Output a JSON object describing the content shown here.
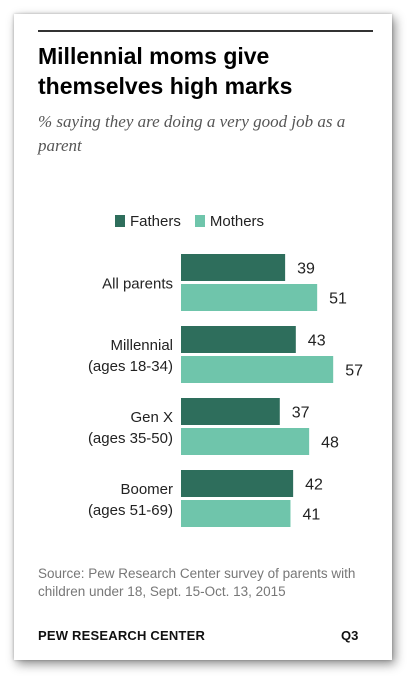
{
  "title": "Millennial moms give themselves high marks",
  "subtitle": "% saying they are doing a very good job as a parent",
  "source": "Source: Pew Research Center survey of parents with children under 18, Sept. 15-Oct. 13, 2015",
  "footer": {
    "org": "PEW RESEARCH CENTER",
    "code": "Q3"
  },
  "colors": {
    "fathers": "#2e6e5c",
    "mothers": "#6fc5ab"
  },
  "chart_data": {
    "type": "bar",
    "orientation": "horizontal",
    "categories": [
      [
        "All parents"
      ],
      [
        "Millennial",
        "(ages 18-34)"
      ],
      [
        "Gen X",
        "(ages 35-50)"
      ],
      [
        "Boomer",
        "(ages 51-69)"
      ]
    ],
    "series": [
      {
        "name": "Fathers",
        "values": [
          39,
          43,
          37,
          42
        ]
      },
      {
        "name": "Mothers",
        "values": [
          51,
          57,
          48,
          41
        ]
      }
    ],
    "legend_position": "top",
    "grid": false
  }
}
